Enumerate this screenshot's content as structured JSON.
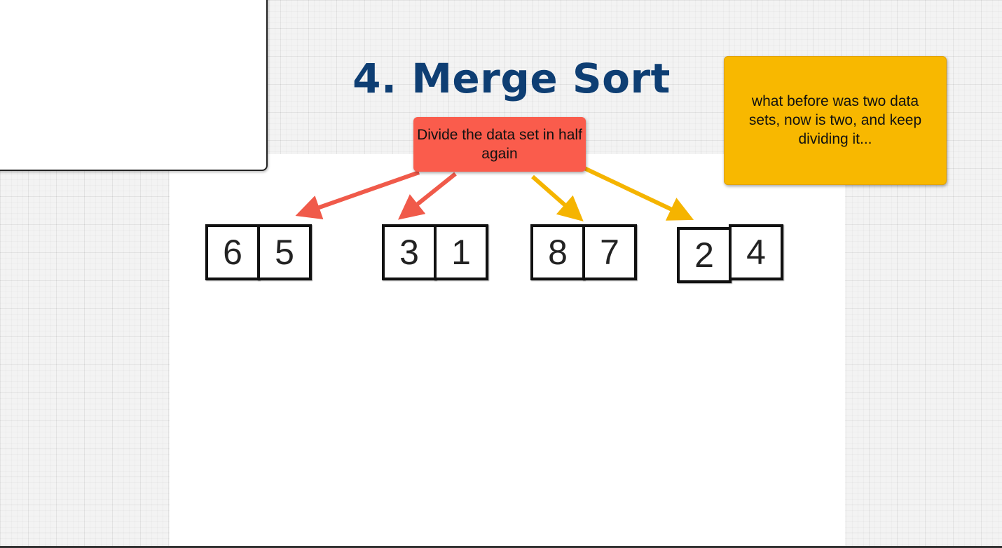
{
  "title": "4. Merge Sort",
  "notes": {
    "red": "Divide the data set in half again",
    "yellow": "what before was two data sets, now is two, and keep dividing it..."
  },
  "pairs": [
    [
      "6",
      "5"
    ],
    [
      "3",
      "1"
    ],
    [
      "8",
      "7"
    ],
    [
      "2",
      "4"
    ]
  ],
  "colors": {
    "title": "#0e3e73",
    "red_note": "#fa5c4c",
    "yellow_note": "#f8b800",
    "red_arrow": "#f05a4a",
    "yellow_arrow": "#f5b400"
  }
}
